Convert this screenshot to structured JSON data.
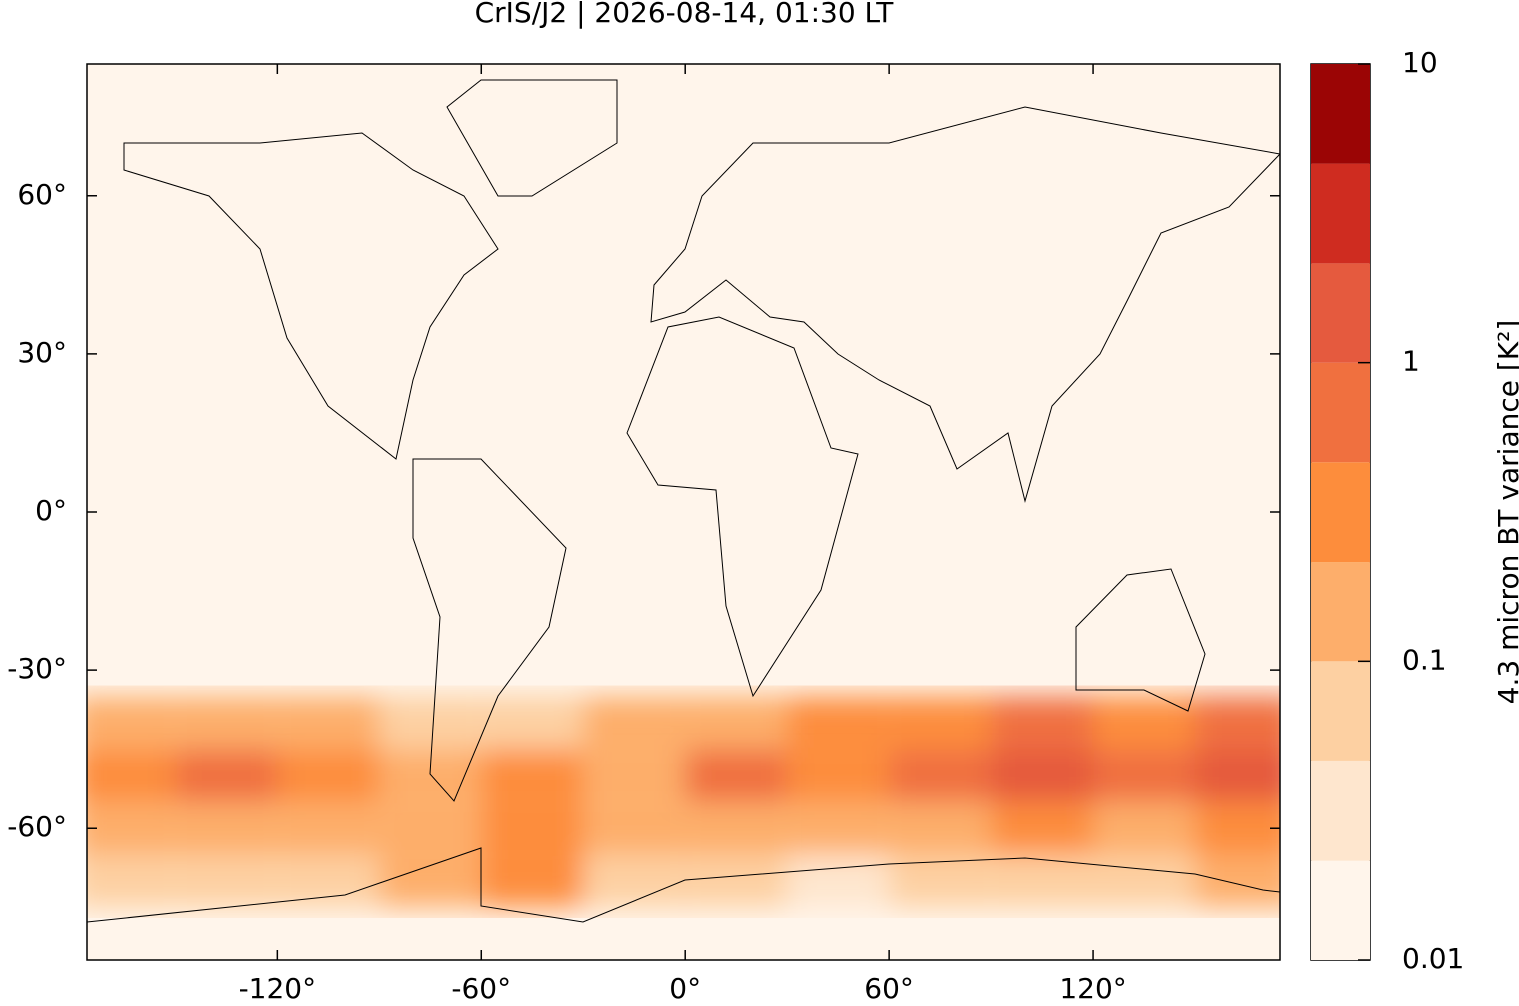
{
  "chart_data": {
    "type": "map",
    "title": "CrIS/J2 | 2026-08-14, 01:30 LT",
    "xlim": [
      -176,
      175
    ],
    "ylim": [
      -85,
      85
    ],
    "xticks": [
      {
        "value": -120,
        "label": "-120°"
      },
      {
        "value": -60,
        "label": "-60°"
      },
      {
        "value": 0,
        "label": "0°"
      },
      {
        "value": 60,
        "label": "60°"
      },
      {
        "value": 120,
        "label": "120°"
      }
    ],
    "yticks": [
      {
        "value": 60,
        "label": "60°"
      },
      {
        "value": 30,
        "label": "30°"
      },
      {
        "value": 0,
        "label": "0°"
      },
      {
        "value": -30,
        "label": "-30°"
      },
      {
        "value": -60,
        "label": "-60°"
      }
    ],
    "field": {
      "lon": [
        -165,
        -135,
        -105,
        -75,
        -45,
        -15,
        15,
        45,
        75,
        105,
        135,
        165
      ],
      "lat": [
        -40,
        -50,
        -60,
        -70
      ],
      "values": [
        [
          0.15,
          0.2,
          0.1,
          0.08,
          0.05,
          0.1,
          0.2,
          0.3,
          0.4,
          0.5,
          0.4,
          0.6
        ],
        [
          0.4,
          0.5,
          0.3,
          0.2,
          0.3,
          0.2,
          0.6,
          0.3,
          0.8,
          1.2,
          0.8,
          1.5
        ],
        [
          0.1,
          0.1,
          0.1,
          0.1,
          0.4,
          0.1,
          0.15,
          0.1,
          0.2,
          0.3,
          0.2,
          0.4
        ],
        [
          0.08,
          0.05,
          0.05,
          0.1,
          0.3,
          0.05,
          0.05,
          0.03,
          0.08,
          0.05,
          0.05,
          0.15
        ]
      ]
    },
    "colorbar": {
      "label": "4.3 micron BT variance [K²]",
      "log_scale": true,
      "lim": [
        0.01,
        10
      ],
      "ticks": [
        0.01,
        0.1,
        1,
        10
      ],
      "levels": [
        0.01,
        0.0215,
        0.0464,
        0.1,
        0.215,
        0.464,
        1,
        2.15,
        4.64,
        10
      ],
      "colors": [
        "#fff5eb",
        "#fee6ce",
        "#fdd0a2",
        "#fdae6b",
        "#fd8d3c",
        "#f0703f",
        "#e55a3e",
        "#cf2c20",
        "#9b0505"
      ]
    }
  }
}
